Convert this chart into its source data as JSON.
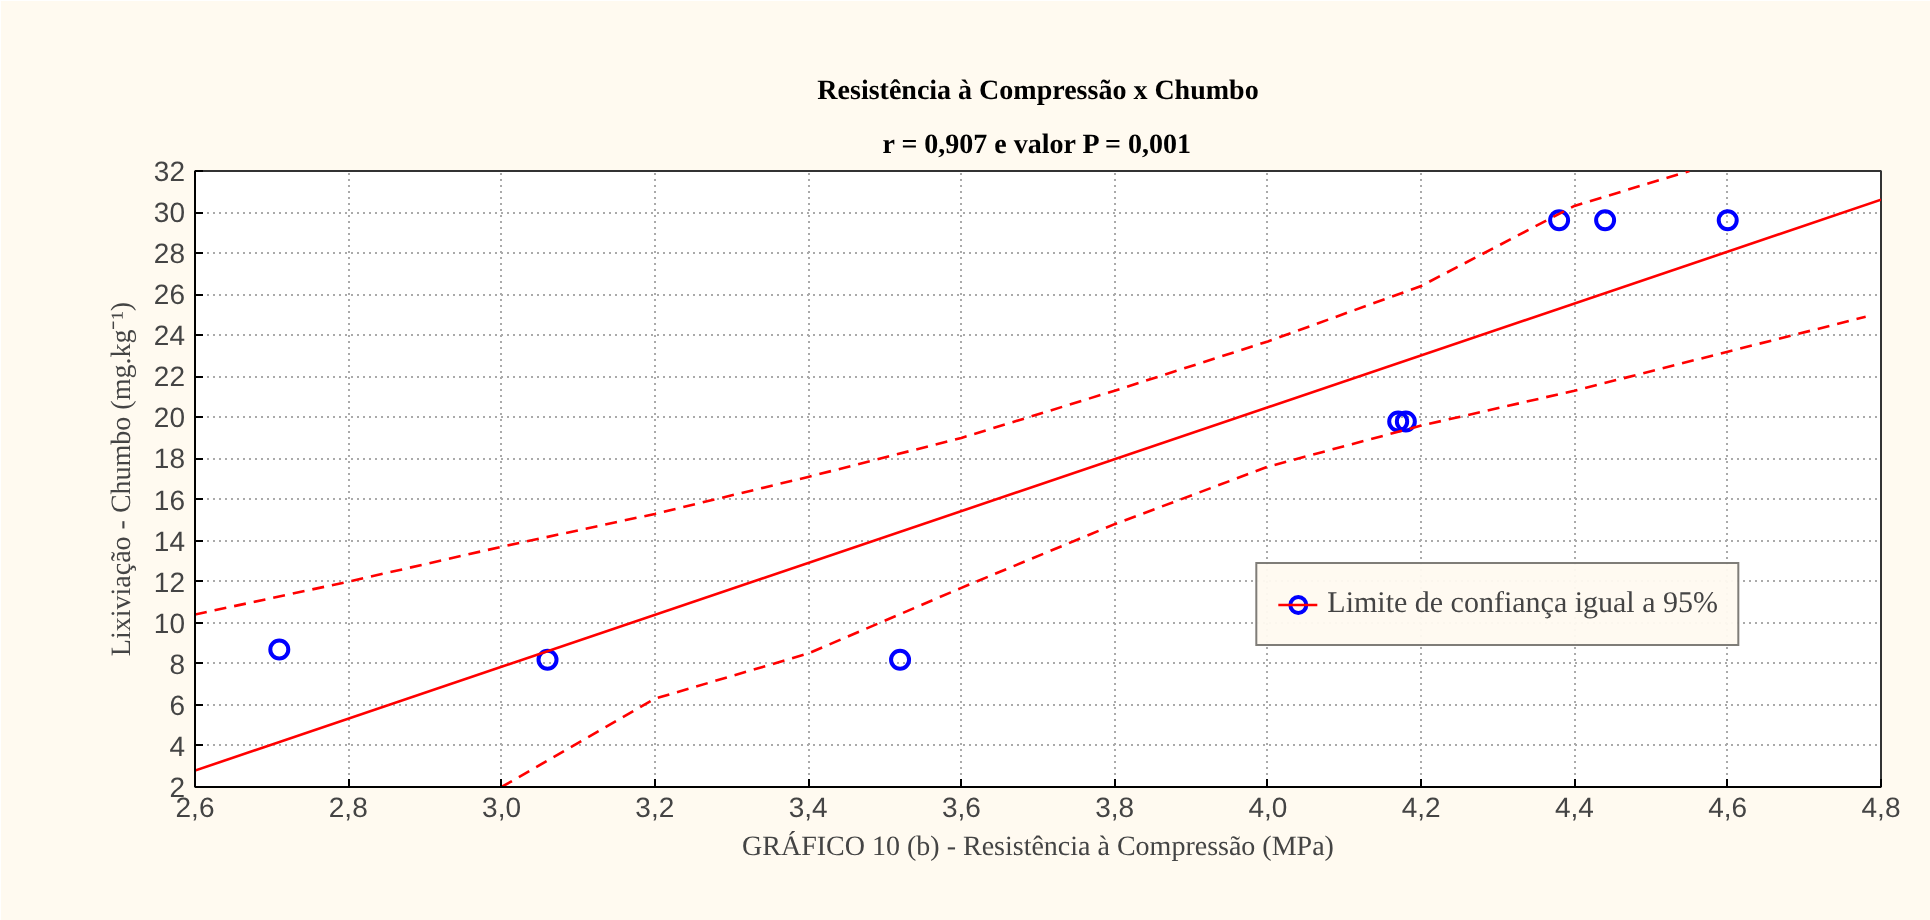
{
  "chart_data": {
    "type": "scatter",
    "title": "Resistência à Compressão x Chumbo",
    "subtitle": "r = 0,907 e valor P = 0,001",
    "xlabel": "GRÁFICO 10 (b) - Resistência à Compressão (MPa)",
    "ylabel": "Lixiviação - Chumbo (mg.kg⁻¹)",
    "xlim": [
      2.6,
      4.8
    ],
    "ylim": [
      2,
      32
    ],
    "xticks": [
      {
        "value": 2.6,
        "label": "2,6"
      },
      {
        "value": 2.8,
        "label": "2,8"
      },
      {
        "value": 3.0,
        "label": "3,0"
      },
      {
        "value": 3.2,
        "label": "3,2"
      },
      {
        "value": 3.4,
        "label": "3,4"
      },
      {
        "value": 3.6,
        "label": "3,6"
      },
      {
        "value": 3.8,
        "label": "3,8"
      },
      {
        "value": 4.0,
        "label": "4,0"
      },
      {
        "value": 4.2,
        "label": "4,2"
      },
      {
        "value": 4.4,
        "label": "4,4"
      },
      {
        "value": 4.6,
        "label": "4,6"
      },
      {
        "value": 4.8,
        "label": "4,8"
      }
    ],
    "yticks": [
      2,
      4,
      6,
      8,
      10,
      12,
      14,
      16,
      18,
      20,
      22,
      24,
      26,
      28,
      30,
      32
    ],
    "grid": true,
    "legend": "bottom right",
    "series": [
      {
        "name": "Limite de confiança igual a 95%",
        "marker": "circle",
        "color": "#0000ff",
        "x": [
          2.71,
          3.06,
          3.52,
          4.17,
          4.18,
          4.38,
          4.44,
          4.6
        ],
        "values": [
          8.7,
          8.2,
          8.2,
          19.8,
          19.8,
          29.6,
          29.6,
          29.6
        ]
      },
      {
        "type": "line",
        "line_style": "solid",
        "color": "#ff0000",
        "x": [
          2.6,
          4.8
        ],
        "values": [
          2.8,
          30.6
        ]
      },
      {
        "type": "line",
        "line_style": "dashed",
        "color": "#ff0000",
        "x": [
          2.6,
          2.8,
          3.0,
          3.2,
          3.4,
          3.6,
          3.8,
          4.0,
          4.2,
          4.4,
          4.55
        ],
        "values": [
          10.4,
          12.0,
          13.7,
          15.3,
          17.1,
          19.0,
          21.3,
          23.7,
          26.4,
          30.3,
          32
        ]
      },
      {
        "type": "line",
        "line_style": "dashed",
        "color": "#ff0000",
        "x": [
          3.0,
          3.2,
          3.4,
          3.6,
          3.8,
          4.0,
          4.2,
          4.4,
          4.6,
          4.78
        ],
        "values": [
          2,
          6.3,
          8.5,
          11.7,
          14.8,
          17.6,
          19.6,
          21.3,
          23.2,
          24.9
        ]
      }
    ]
  }
}
